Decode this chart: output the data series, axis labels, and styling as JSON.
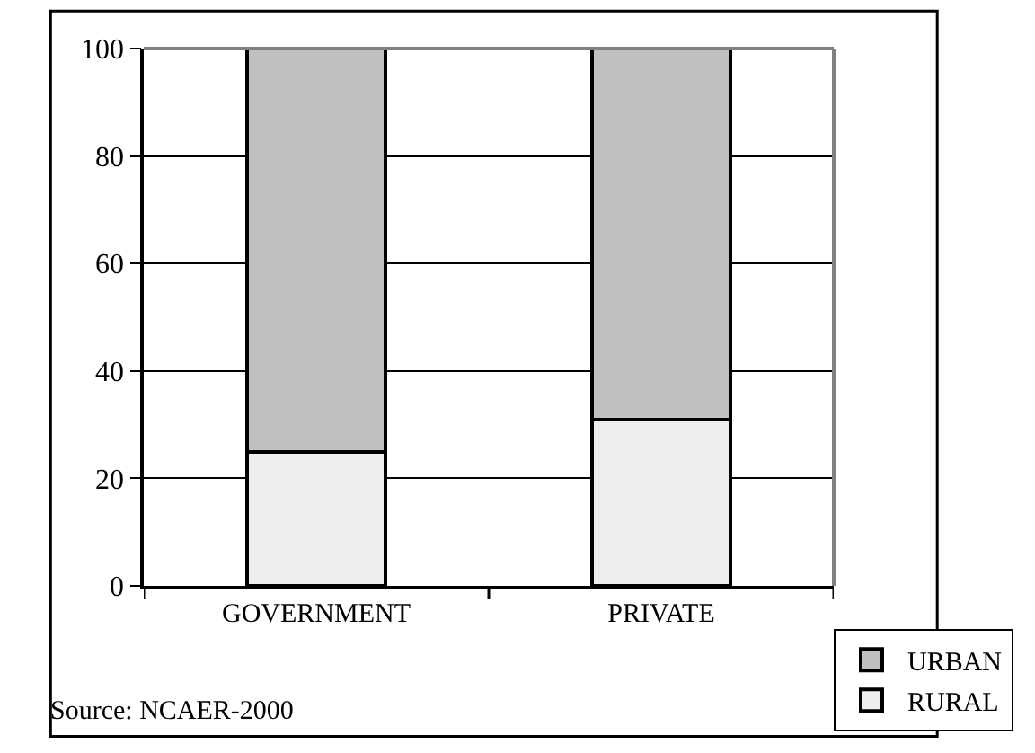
{
  "chart_data": {
    "type": "bar",
    "stacked": true,
    "categories": [
      "GOVERNMENT",
      "PRIVATE"
    ],
    "series": [
      {
        "name": "RURAL",
        "color": "#eeeeee",
        "values": [
          25,
          31
        ]
      },
      {
        "name": "URBAN",
        "color": "#c0c0c0",
        "values": [
          75,
          69
        ]
      }
    ],
    "ylim": [
      0,
      100
    ],
    "yticks": [
      0,
      20,
      40,
      60,
      80,
      100
    ],
    "grid": "y",
    "legend": "bottom right",
    "annotations": [
      "Source: NCAER-2000"
    ]
  }
}
